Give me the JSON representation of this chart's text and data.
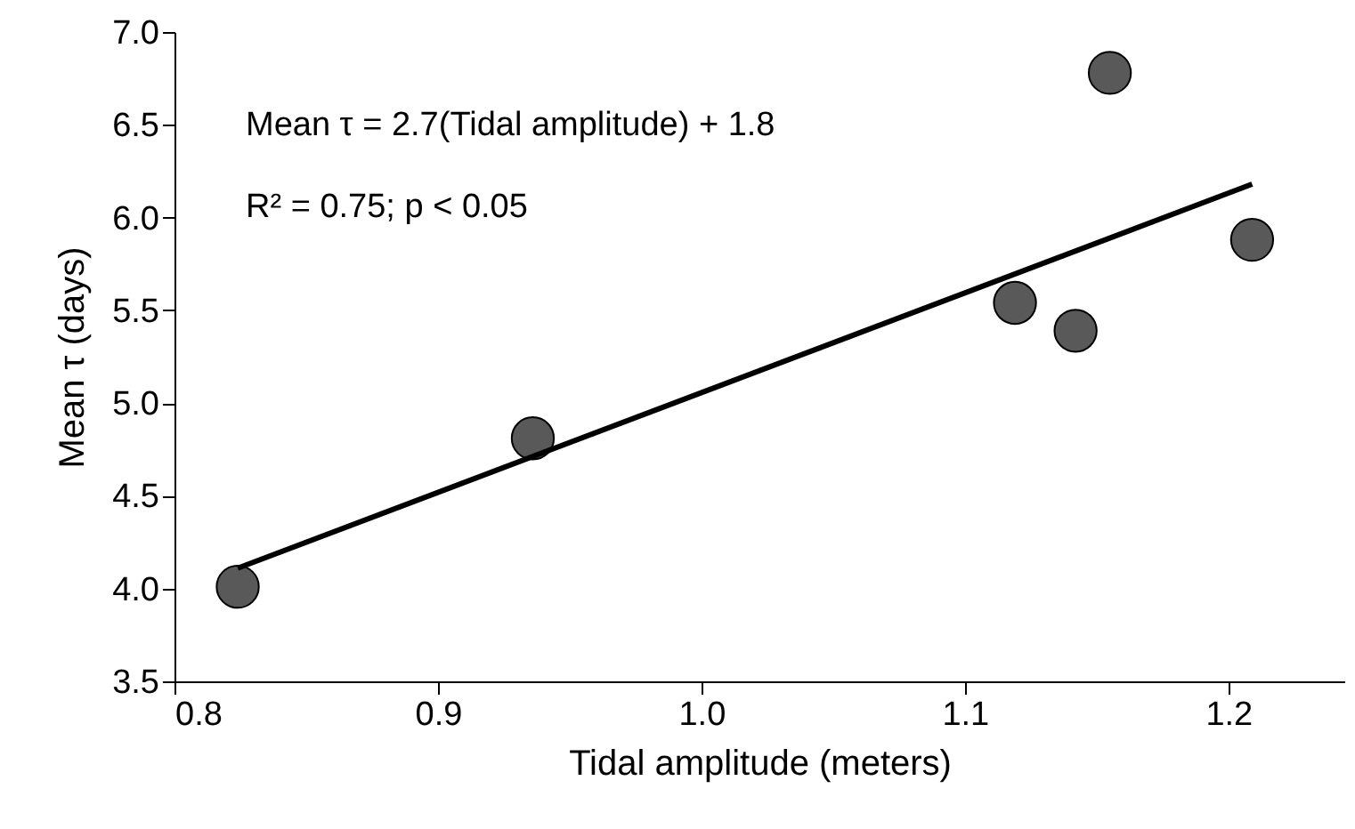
{
  "chart_data": {
    "type": "scatter",
    "xlabel": "Tidal amplitude (meters)",
    "ylabel": "Mean τ (days)",
    "annotations": [
      "Mean τ = 2.7(Tidal amplitude) + 1.8",
      "R² = 0.75; p < 0.05"
    ],
    "xlim": [
      0.8,
      1.244
    ],
    "xticks": [
      0.8,
      0.9,
      {
        "value": 1,
        "label": "1.0"
      },
      1.1,
      1.2
    ],
    "ylim": [
      3.5,
      7.0
    ],
    "yticks": [
      3.5,
      {
        "value": 4,
        "label": "4.0"
      },
      4.5,
      {
        "value": 5,
        "label": "5.0"
      },
      5.5,
      {
        "value": 6,
        "label": "6.0"
      },
      6.5,
      {
        "value": 7,
        "label": "7.0"
      }
    ],
    "series": [
      {
        "marker": "circle",
        "color": "#595959",
        "x": [
          0.824,
          0.936,
          1.119,
          1.142,
          1.155,
          1.209
        ],
        "values": [
          4.01,
          4.81,
          5.54,
          5.39,
          6.78,
          5.88
        ]
      },
      {
        "type": "line",
        "color": "#000000",
        "x": [
          0.824,
          1.209
        ],
        "values": [
          4.11,
          6.18
        ]
      }
    ]
  }
}
